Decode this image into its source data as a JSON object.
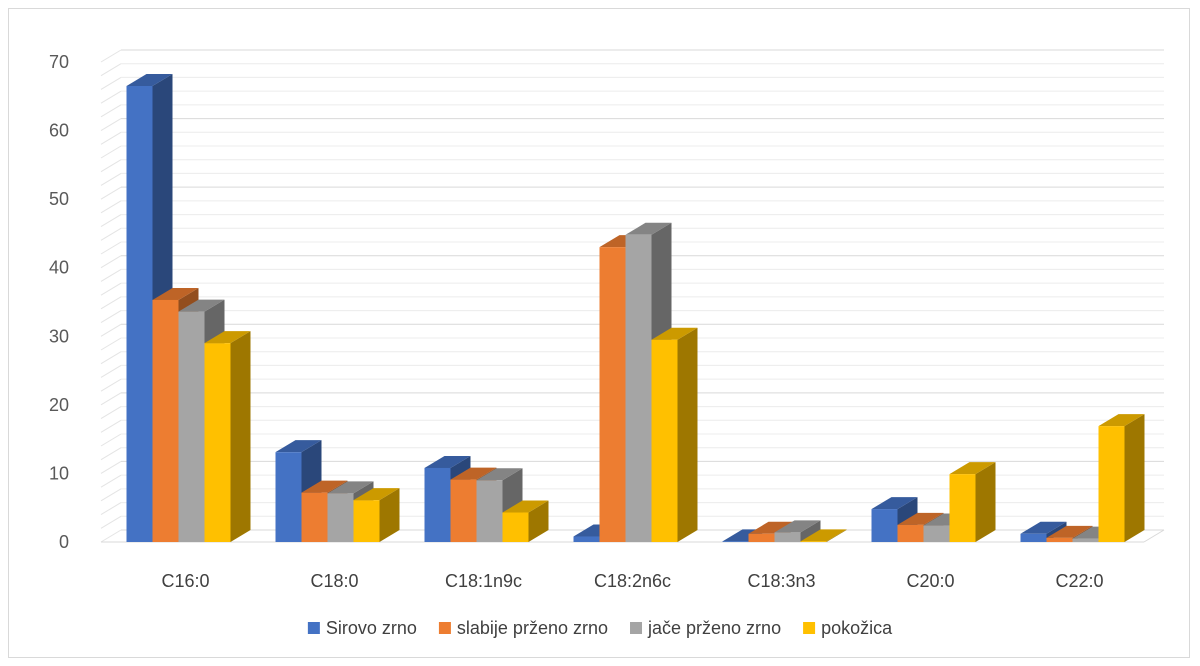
{
  "chart_data": {
    "type": "bar",
    "style": "3d-clustered-column",
    "title": "",
    "xlabel": "",
    "ylabel": "",
    "ylim": [
      0,
      70
    ],
    "yticks": [
      0,
      10,
      20,
      30,
      40,
      50,
      60,
      70
    ],
    "grid": true,
    "legend_position": "bottom",
    "categories": [
      "C16:0",
      "C18:0",
      "C18:1n9c",
      "C18:2n6c",
      "C18:3n3",
      "C20:0",
      "C22:0"
    ],
    "series": [
      {
        "name": "Sirovo zrno",
        "color": "#4472C4",
        "values": [
          66.5,
          13.1,
          10.8,
          0.8,
          0.1,
          4.8,
          1.2
        ]
      },
      {
        "name": "slabije prženo zrno",
        "color": "#ED7D31",
        "values": [
          35.3,
          7.2,
          9.1,
          43.0,
          1.2,
          2.5,
          0.6
        ]
      },
      {
        "name": "jače prženo zrno",
        "color": "#A5A5A5",
        "values": [
          33.6,
          7.1,
          9.0,
          44.8,
          1.4,
          2.4,
          0.5
        ]
      },
      {
        "name": "pokožica",
        "color": "#FFC000",
        "values": [
          29.0,
          6.1,
          4.3,
          29.5,
          0.1,
          9.9,
          16.9
        ]
      }
    ]
  }
}
